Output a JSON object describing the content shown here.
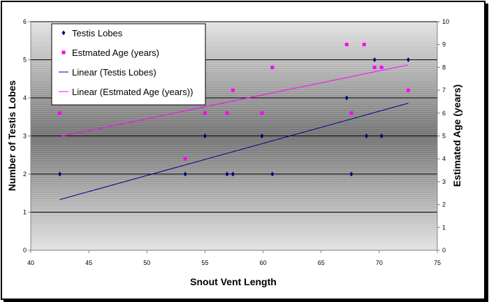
{
  "chart_data": {
    "type": "scatter",
    "xlabel": "Snout Vent Length",
    "ylabel": "Number of Testis Lobes",
    "y2label": "Estimated Age (years)",
    "xlim": [
      40,
      75
    ],
    "xticks": [
      40,
      45,
      50,
      55,
      60,
      65,
      70,
      75
    ],
    "ylim": [
      0,
      6
    ],
    "yticks": [
      0,
      1,
      2,
      3,
      4,
      5,
      6
    ],
    "y2lim": [
      0,
      10
    ],
    "y2ticks": [
      0,
      1,
      2,
      3,
      4,
      5,
      6,
      7,
      8,
      9,
      10
    ],
    "grid": true,
    "legend_position": "top-left",
    "series": [
      {
        "name": "Testis Lobes",
        "axis": "left",
        "marker": "diamond",
        "color": "#000080",
        "x": [
          42.5,
          53.3,
          55.0,
          56.9,
          57.4,
          59.9,
          60.8,
          67.2,
          67.6,
          68.9,
          69.6,
          70.2,
          72.5
        ],
        "y": [
          2,
          2,
          3,
          2,
          2,
          3,
          2,
          4,
          2,
          3,
          5,
          3,
          5
        ]
      },
      {
        "name": "Estmated Age (years)",
        "axis": "right",
        "marker": "square",
        "color": "#ff00ff",
        "x": [
          42.5,
          53.3,
          55.0,
          56.9,
          57.4,
          59.9,
          60.8,
          67.2,
          67.6,
          68.7,
          69.6,
          70.2,
          72.5
        ],
        "y": [
          6,
          4,
          6,
          6,
          7,
          6,
          8,
          9,
          6,
          9,
          8,
          8,
          7
        ]
      },
      {
        "name": "Linear (Testis Lobes)",
        "axis": "left",
        "line": true,
        "color": "#000080",
        "x": [
          42.5,
          72.5
        ],
        "y": [
          1.33,
          3.86
        ]
      },
      {
        "name": "Linear (Estmated Age (years))",
        "axis": "right",
        "line": true,
        "color": "#ff00ff",
        "x": [
          42.5,
          72.5
        ],
        "y": [
          4.97,
          8.11
        ]
      }
    ]
  }
}
